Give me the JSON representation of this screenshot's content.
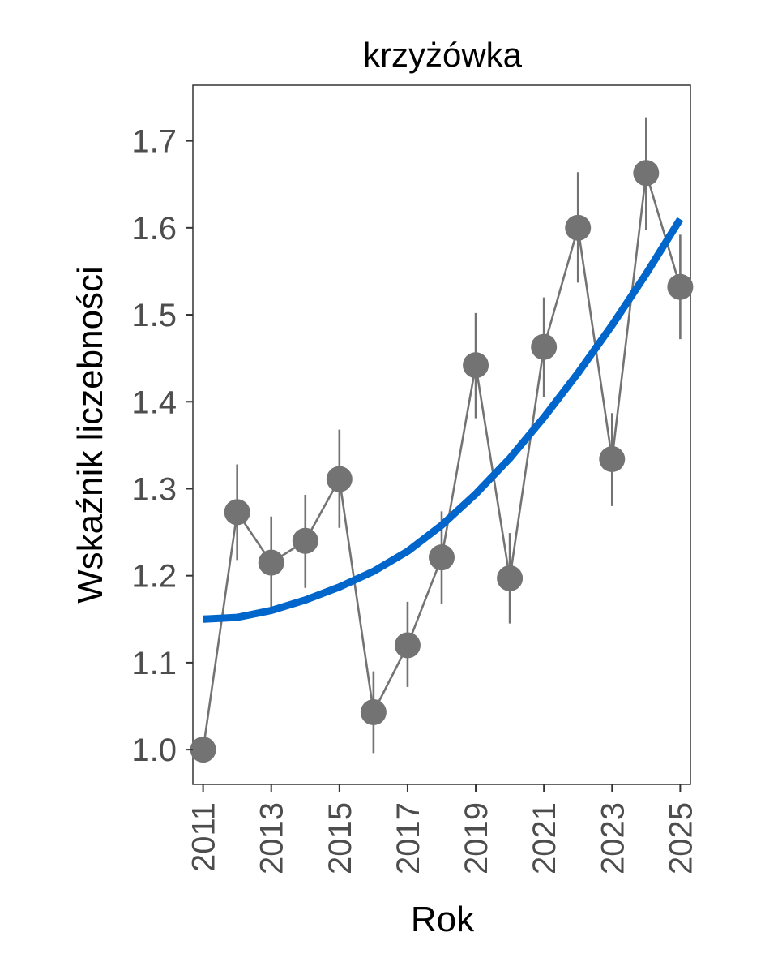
{
  "chart_data": {
    "type": "line",
    "title": "krzyżówka",
    "xlabel": "Rok",
    "ylabel": "Wskaźnik liczebności",
    "x_tick_labels": [
      "2011",
      "2013",
      "2015",
      "2017",
      "2019",
      "2021",
      "2023",
      "2025"
    ],
    "y_tick_labels": [
      "1.0",
      "1.1",
      "1.2",
      "1.3",
      "1.4",
      "1.5",
      "1.6",
      "1.7"
    ],
    "xlim": [
      2010.7,
      2025.3
    ],
    "ylim": [
      0.96,
      1.764
    ],
    "grid": false,
    "series": [
      {
        "kind": "points-with-error-bars",
        "x": [
          2011,
          2012,
          2013,
          2014,
          2015,
          2016,
          2017,
          2018,
          2019,
          2020,
          2021,
          2022,
          2023,
          2024,
          2025
        ],
        "y": [
          1.0,
          1.273,
          1.215,
          1.24,
          1.311,
          1.043,
          1.12,
          1.221,
          1.442,
          1.197,
          1.463,
          1.6,
          1.334,
          1.663,
          1.532
        ],
        "y_lower": [
          1.0,
          1.218,
          1.162,
          1.186,
          1.255,
          0.996,
          1.072,
          1.168,
          1.381,
          1.145,
          1.405,
          1.537,
          1.28,
          1.598,
          1.472
        ],
        "y_upper": [
          1.0,
          1.328,
          1.268,
          1.293,
          1.368,
          1.09,
          1.17,
          1.274,
          1.502,
          1.249,
          1.52,
          1.664,
          1.387,
          1.727,
          1.592
        ],
        "color": "#737373"
      },
      {
        "kind": "trend",
        "x": [
          2011,
          2012,
          2013,
          2014,
          2015,
          2016,
          2017,
          2018,
          2019,
          2020,
          2021,
          2022,
          2023,
          2024,
          2025
        ],
        "y": [
          1.15,
          1.152,
          1.16,
          1.172,
          1.187,
          1.205,
          1.228,
          1.258,
          1.294,
          1.335,
          1.382,
          1.433,
          1.488,
          1.547,
          1.61
        ],
        "color": "#0066cc"
      }
    ]
  }
}
